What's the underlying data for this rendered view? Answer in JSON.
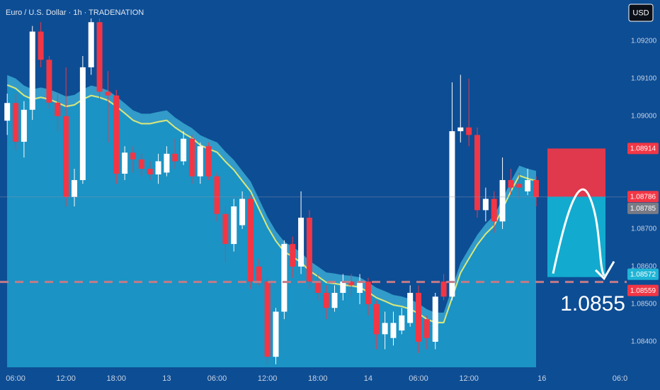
{
  "chart_data": {
    "type": "candlestick",
    "title": "Euro / U.S. Dollar · 1h · TRADENATION",
    "currency": "USD",
    "annotation": "1.0855",
    "up_color": "#ffffff",
    "down_color": "#f23645",
    "ma_color": "#d9e87a",
    "cloud_color": "#1b93c4",
    "x": [
      -1,
      0,
      1,
      2,
      3,
      4,
      5,
      6,
      7,
      8,
      9,
      10,
      11,
      12,
      13,
      14,
      15,
      16,
      17,
      18,
      19,
      20,
      21,
      22,
      23,
      24,
      25,
      26,
      27,
      28,
      29,
      30,
      31,
      32,
      33,
      34,
      35,
      36,
      37,
      38,
      39,
      40,
      41,
      42,
      43,
      44,
      45,
      46,
      47,
      48,
      49,
      50,
      51,
      52,
      53,
      54,
      55,
      56,
      57,
      58,
      59,
      60,
      61,
      62
    ],
    "open": [
      1.08988,
      1.09035,
      1.08932,
      1.09017,
      1.09225,
      1.0915,
      1.09036,
      1.09,
      1.08785,
      1.0883,
      1.0913,
      1.0925,
      1.09065,
      1.09055,
      1.08847,
      1.08903,
      1.08885,
      1.0886,
      1.08845,
      1.0885,
      1.089,
      1.0888,
      1.0894,
      1.0884,
      1.0892,
      1.0884,
      1.0874,
      1.0866,
      1.0871,
      1.0878,
      1.086,
      1.0856,
      1.0836,
      1.0848,
      1.0866,
      1.086,
      1.0873,
      1.0856,
      1.0853,
      1.0849,
      1.0853,
      1.0856,
      1.0853,
      1.0856,
      1.085,
      1.0842,
      1.0841,
      1.0843,
      1.0845,
      1.0853,
      1.0846,
      1.084,
      1.0856,
      1.0852,
      1.0896,
      1.0897,
      1.0895,
      1.0875,
      1.0878,
      1.0872,
      1.0883,
      1.0882,
      1.088,
      1.0883
    ],
    "high": [
      1.0906,
      1.0906,
      1.0904,
      1.0924,
      1.0925,
      1.0916,
      1.0906,
      1.0913,
      1.0886,
      1.0916,
      1.0926,
      1.0926,
      1.0912,
      1.0907,
      1.0892,
      1.0892,
      1.089,
      1.0888,
      1.089,
      1.0892,
      1.0894,
      1.0896,
      1.0895,
      1.0893,
      1.0893,
      1.0885,
      1.0876,
      1.0878,
      1.088,
      1.0879,
      1.0862,
      1.0857,
      1.0849,
      1.0867,
      1.0868,
      1.088,
      1.0875,
      1.0858,
      1.0855,
      1.0855,
      1.0858,
      1.0858,
      1.0858,
      1.0857,
      1.0851,
      1.0848,
      1.0848,
      1.0849,
      1.0855,
      1.0855,
      1.0847,
      1.0853,
      1.0858,
      1.0909,
      1.0911,
      1.091,
      1.0897,
      1.0881,
      1.088,
      1.0889,
      1.0886,
      1.0885,
      1.0886,
      1.0884
    ],
    "low": [
      1.0895,
      1.0891,
      1.0889,
      1.0899,
      1.0913,
      1.0902,
      1.0896,
      1.0876,
      1.0876,
      1.0882,
      1.0911,
      1.0904,
      1.0893,
      1.0882,
      1.0883,
      1.0885,
      1.0884,
      1.0883,
      1.0882,
      1.0884,
      1.0886,
      1.0887,
      1.0882,
      1.0882,
      1.0883,
      1.0872,
      1.0861,
      1.0864,
      1.087,
      1.0854,
      1.0855,
      1.0834,
      1.0834,
      1.0846,
      1.0857,
      1.0858,
      1.0854,
      1.0851,
      1.0846,
      1.0848,
      1.0851,
      1.0852,
      1.085,
      1.0847,
      1.0838,
      1.0838,
      1.0839,
      1.0842,
      1.0844,
      1.0837,
      1.0838,
      1.0838,
      1.0851,
      1.0851,
      1.0893,
      1.0892,
      1.0873,
      1.0872,
      1.0869,
      1.087,
      1.0879,
      1.0878,
      1.0879,
      1.0876
    ],
    "close": [
      1.09035,
      1.08932,
      1.09017,
      1.09225,
      1.0915,
      1.09036,
      1.09,
      1.08785,
      1.0883,
      1.0913,
      1.0925,
      1.09065,
      1.09055,
      1.08847,
      1.08903,
      1.08885,
      1.0886,
      1.08845,
      1.0888,
      1.089,
      1.0888,
      1.0894,
      1.0884,
      1.0892,
      1.0884,
      1.0874,
      1.0866,
      1.0876,
      1.0878,
      1.0856,
      1.0856,
      1.0836,
      1.0848,
      1.0866,
      1.086,
      1.0873,
      1.0856,
      1.0853,
      1.0849,
      1.0853,
      1.0856,
      1.0855,
      1.0856,
      1.085,
      1.0842,
      1.0845,
      1.0845,
      1.0847,
      1.0853,
      1.084,
      1.0841,
      1.0852,
      1.0852,
      1.0896,
      1.0897,
      1.0895,
      1.0875,
      1.0878,
      1.0872,
      1.0883,
      1.0881,
      1.0881,
      1.0883,
      1.08785
    ],
    "ma": [
      1.09083,
      1.09074,
      1.09055,
      1.09045,
      1.0905,
      1.09045,
      1.09036,
      1.09026,
      1.0903,
      1.09045,
      1.09055,
      1.0905,
      1.09042,
      1.09026,
      1.09008,
      1.08989,
      1.0898,
      1.0898,
      1.08985,
      1.08989,
      1.0897,
      1.08955,
      1.08942,
      1.08923,
      1.08913,
      1.08904,
      1.08879,
      1.08857,
      1.08828,
      1.088,
      1.08753,
      1.08706,
      1.08668,
      1.0864,
      1.08626,
      1.08611,
      1.08589,
      1.08574,
      1.08558,
      1.08555,
      1.08551,
      1.08549,
      1.08545,
      1.08532,
      1.08517,
      1.08508,
      1.08498,
      1.08494,
      1.08487,
      1.08475,
      1.0846,
      1.08451,
      1.08451,
      1.08517,
      1.08583,
      1.08621,
      1.08658,
      1.08687,
      1.08709,
      1.08753,
      1.088,
      1.08842,
      1.08834,
      1.08828
    ],
    "xlim": [
      -1.86,
      72.8
    ],
    "ylim": [
      1.08332,
      1.09309
    ],
    "xticks": [
      {
        "value": 0,
        "label": "06:00"
      },
      {
        "value": 6,
        "label": "12:00"
      },
      {
        "value": 12,
        "label": "18:00"
      },
      {
        "value": 18,
        "label": "13"
      },
      {
        "value": 24,
        "label": "06:00"
      },
      {
        "value": 30,
        "label": "12:00"
      },
      {
        "value": 36,
        "label": "18:00"
      },
      {
        "value": 42,
        "label": "14"
      },
      {
        "value": 48,
        "label": "06:00"
      },
      {
        "value": 54,
        "label": "12:00"
      },
      {
        "value": 62.7,
        "label": "16"
      },
      {
        "value": 72,
        "label": "06:0"
      }
    ],
    "yticks": [
      {
        "value": 1.092,
        "label": "1.09200"
      },
      {
        "value": 1.091,
        "label": "1.09100"
      },
      {
        "value": 1.09,
        "label": "1.09000"
      },
      {
        "value": 1.087,
        "label": "1.08700"
      },
      {
        "value": 1.086,
        "label": "1.08600"
      },
      {
        "value": 1.085,
        "label": "1.08500"
      },
      {
        "value": 1.084,
        "label": "1.08400"
      }
    ],
    "price_labels": [
      {
        "value": 1.08914,
        "color": "#f23645"
      },
      {
        "value": 1.08786,
        "color": "#f23645"
      },
      {
        "value": 1.08785,
        "color": "#787b86"
      },
      {
        "value": 1.08572,
        "color": "#1fb5d6"
      },
      {
        "value": 1.08559,
        "color": "#f23645"
      }
    ]
  }
}
